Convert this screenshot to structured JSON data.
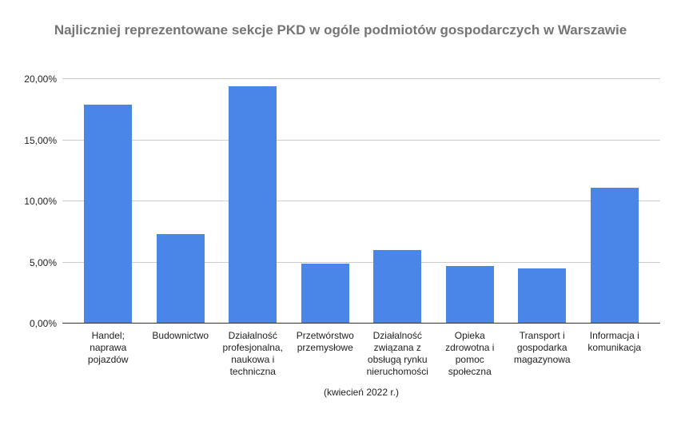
{
  "chart_data": {
    "type": "bar",
    "title": "Najliczniej reprezentowane sekcje PKD w ogóle podmiotów gospodarczych w Warszawie",
    "subtitle": "(kwiecień 2022 r.)",
    "categories": [
      "Handel; naprawa pojazdów",
      "Budownictwo",
      "Działalność profesjonalna, naukowa i techniczna",
      "Przetwórstwo przemysłowe",
      "Działalność związana z obsługą rynku nieruchomości",
      "Opieka zdrowotna i pomoc społeczna",
      "Transport i gospodarka magazynowa",
      "Informacja i komunikacja"
    ],
    "values": [
      17.9,
      7.3,
      19.4,
      4.9,
      6.0,
      4.7,
      4.5,
      11.1
    ],
    "value_unit": "%",
    "xlabel": "",
    "ylabel": "",
    "ylim": [
      0,
      20
    ],
    "y_ticks": [
      {
        "value": 0,
        "label": "0,00%"
      },
      {
        "value": 5,
        "label": "5,00%"
      },
      {
        "value": 10,
        "label": "10,00%"
      },
      {
        "value": 15,
        "label": "15,00%"
      },
      {
        "value": 20,
        "label": "20,00%"
      }
    ],
    "grid": true,
    "legend": "none",
    "colors": {
      "bar": "#4a86e8",
      "title": "#757575",
      "gridline": "#cccccc",
      "axis_line": "#333333",
      "labels": "#222222",
      "background": "#ffffff"
    }
  }
}
